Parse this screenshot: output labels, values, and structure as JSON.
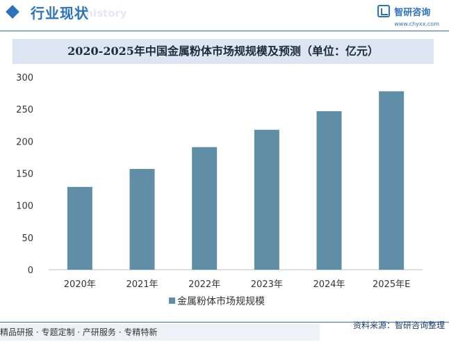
{
  "header": {
    "section_title": "行业现状",
    "section_subtitle": "ent history",
    "brand_name": "智研咨询",
    "brand_url": "www.chyxx.com"
  },
  "chart_data": {
    "type": "bar",
    "title": "2020-2025年中国金属粉体市场规规模及预测（单位：亿元）",
    "categories": [
      "2020年",
      "2021年",
      "2022年",
      "2023年",
      "2024年",
      "2025年E"
    ],
    "series": [
      {
        "name": "金属粉体市场规规模",
        "values": [
          129,
          157,
          191,
          218,
          247,
          278
        ]
      }
    ],
    "yticks": [
      0,
      50,
      100,
      150,
      200,
      250,
      300
    ],
    "ylim": [
      0,
      300
    ],
    "xlabel": "",
    "ylabel": "",
    "grid": false,
    "legend": "bottom-center",
    "bar_color": "#5f8ea6"
  },
  "footer": {
    "tagline": "精品研报 · 专题定制 · 产研服务 · 专精特新",
    "source": "资料来源：智研咨询整理"
  }
}
